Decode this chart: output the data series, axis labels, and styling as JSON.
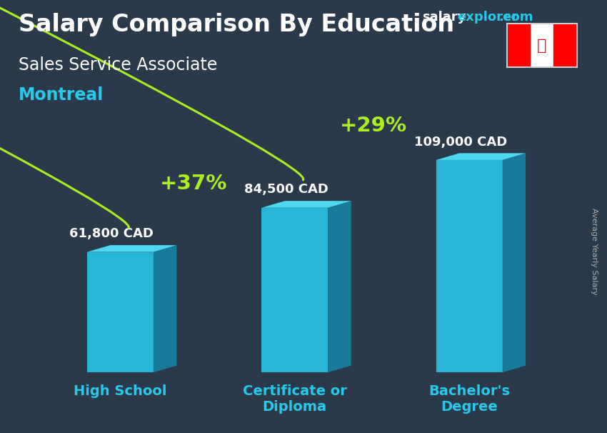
{
  "title": "Salary Comparison By Education",
  "subtitle1": "Sales Service Associate",
  "subtitle2": "Montreal",
  "ylabel": "Average Yearly Salary",
  "watermark_salary": "salary",
  "watermark_explorer": "explorer",
  "watermark_com": ".com",
  "categories": [
    "High School",
    "Certificate or\nDiploma",
    "Bachelor's\nDegree"
  ],
  "values": [
    61800,
    84500,
    109000
  ],
  "labels": [
    "61,800 CAD",
    "84,500 CAD",
    "109,000 CAD"
  ],
  "pct_labels": [
    "+37%",
    "+29%"
  ],
  "bar_color_face": "#29b6d6",
  "bar_color_top": "#4dd8f0",
  "bar_color_side": "#1a7a9a",
  "arrow_color": "#aaee22",
  "pct_color": "#aaee22",
  "title_color": "#ffffff",
  "subtitle1_color": "#ffffff",
  "subtitle2_color": "#29c8e8",
  "label_color": "#ffffff",
  "xtick_color": "#29c8e8",
  "bg_color": "#2a3a4a",
  "ylabel_color": "#aaaaaa",
  "bar_width": 0.38,
  "bar_positions": [
    0,
    1,
    2
  ],
  "ylim": [
    0,
    140000
  ],
  "xlim": [
    -0.55,
    2.65
  ],
  "title_fontsize": 24,
  "subtitle1_fontsize": 17,
  "subtitle2_fontsize": 17,
  "label_fontsize": 13,
  "pct_fontsize": 21,
  "xtick_fontsize": 14,
  "watermark_fontsize": 13,
  "ylabel_fontsize": 8
}
